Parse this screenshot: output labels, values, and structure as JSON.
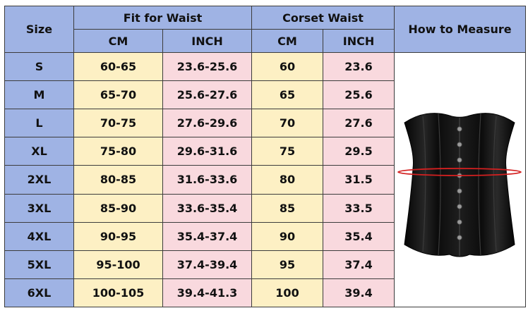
{
  "table": {
    "headers": {
      "size": "Size",
      "fit_for_waist": "Fit for Waist",
      "corset_waist": "Corset Waist",
      "how_to_measure": "How to Measure",
      "cm": "CM",
      "inch": "INCH"
    },
    "rows": [
      {
        "size": "S",
        "fit_cm": "60-65",
        "fit_inch": "23.6-25.6",
        "corset_cm": "60",
        "corset_inch": "23.6"
      },
      {
        "size": "M",
        "fit_cm": "65-70",
        "fit_inch": "25.6-27.6",
        "corset_cm": "65",
        "corset_inch": "25.6"
      },
      {
        "size": "L",
        "fit_cm": "70-75",
        "fit_inch": "27.6-29.6",
        "corset_cm": "70",
        "corset_inch": "27.6"
      },
      {
        "size": "XL",
        "fit_cm": "75-80",
        "fit_inch": "29.6-31.6",
        "corset_cm": "75",
        "corset_inch": "29.5"
      },
      {
        "size": "2XL",
        "fit_cm": "80-85",
        "fit_inch": "31.6-33.6",
        "corset_cm": "80",
        "corset_inch": "31.5"
      },
      {
        "size": "3XL",
        "fit_cm": "85-90",
        "fit_inch": "33.6-35.4",
        "corset_cm": "85",
        "corset_inch": "33.5"
      },
      {
        "size": "4XL",
        "fit_cm": "90-95",
        "fit_inch": "35.4-37.4",
        "corset_cm": "90",
        "corset_inch": "35.4"
      },
      {
        "size": "5XL",
        "fit_cm": "95-100",
        "fit_inch": "37.4-39.4",
        "corset_cm": "95",
        "corset_inch": "37.4"
      },
      {
        "size": "6XL",
        "fit_cm": "100-105",
        "fit_inch": "39.4-41.3",
        "corset_cm": "100",
        "corset_inch": "39.4"
      }
    ]
  },
  "colors": {
    "header_blue": "#9fb3e4",
    "cm_column_yellow": "#fdf0c4",
    "inch_column_pink": "#f9d9de",
    "subheader_red": "#e01f1f",
    "measure_line_red": "#d42020"
  },
  "image": {
    "icon": "black-underbust-corset-with-red-waist-measure-line"
  }
}
